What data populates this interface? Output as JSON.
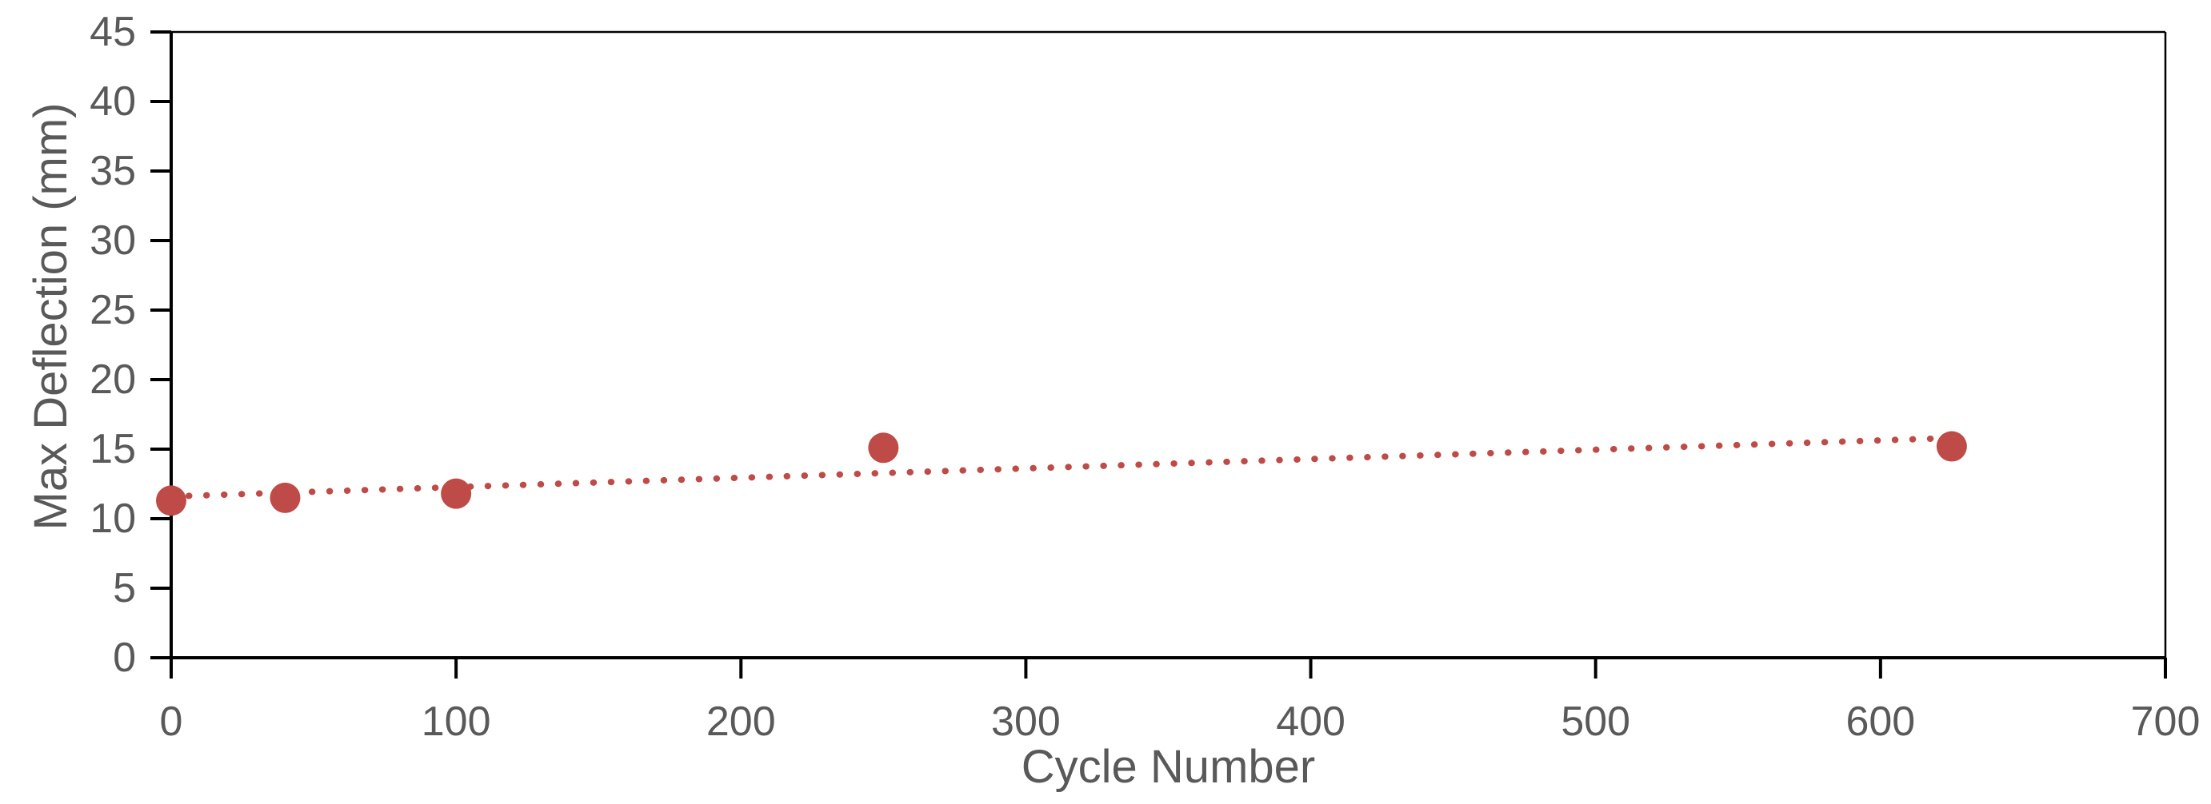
{
  "chart_data": {
    "type": "scatter",
    "title": "",
    "xlabel": "Cycle Number",
    "ylabel": "Max Deflection (mm)",
    "xlim": [
      0,
      700
    ],
    "ylim": [
      0,
      45
    ],
    "xticks": [
      0,
      100,
      200,
      300,
      400,
      500,
      600,
      700
    ],
    "yticks": [
      0,
      5,
      10,
      15,
      20,
      25,
      30,
      35,
      40,
      45
    ],
    "grid": false,
    "legend": false,
    "series": [
      {
        "name": "Max Deflection",
        "marker": "circle",
        "color": "#BE4B48",
        "points": [
          [
            0,
            11.3
          ],
          [
            40,
            11.5
          ],
          [
            100,
            11.8
          ],
          [
            250,
            15.1
          ],
          [
            625,
            15.2
          ]
        ]
      }
    ],
    "trendline": {
      "type": "linear",
      "style": "dotted",
      "color": "#BE4B48",
      "x": [
        0,
        625
      ],
      "y": [
        11.6,
        15.8
      ]
    },
    "axis_color": "#000000",
    "label_color": "#595959",
    "background_color": "#ffffff"
  }
}
